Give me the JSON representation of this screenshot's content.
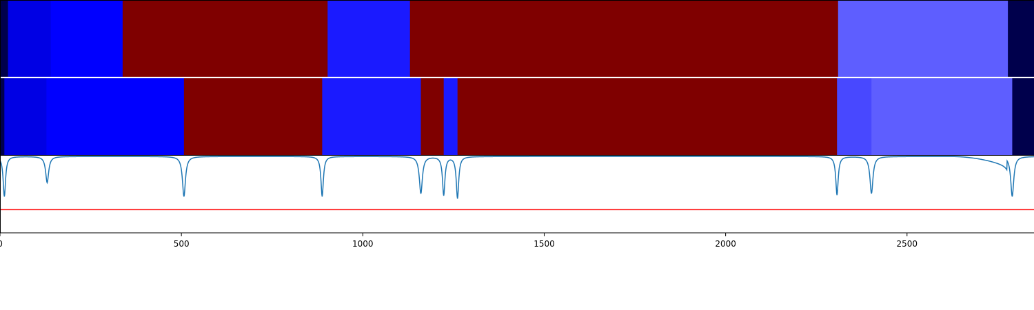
{
  "chart_data": {
    "type": "heatmap",
    "title": "",
    "xlabel": "",
    "ylabel": "",
    "xlim": [
      0,
      2850
    ],
    "x_ticks": [
      "0",
      "500",
      "1000",
      "1500",
      "2000",
      "2500"
    ],
    "x_tick_values": [
      0,
      500,
      1000,
      1500,
      2000,
      2500
    ],
    "colors": {
      "dark_navy": "#00004c",
      "blue_dark": "#0000e4",
      "blue": "#0000ff",
      "blue_mid": "#1a1aff",
      "blue_light": "#4848ff",
      "blue_pale": "#5e5eff",
      "maroon": "#7f0000",
      "curve": "#1f77b4",
      "threshold": "#ff0000"
    },
    "rows": [
      {
        "segments": [
          {
            "start": 0,
            "end": 22,
            "color": "dark_navy"
          },
          {
            "start": 22,
            "end": 140,
            "color": "blue_dark"
          },
          {
            "start": 140,
            "end": 338,
            "color": "blue"
          },
          {
            "start": 338,
            "end": 903,
            "color": "maroon"
          },
          {
            "start": 903,
            "end": 1130,
            "color": "blue_mid"
          },
          {
            "start": 1130,
            "end": 2310,
            "color": "maroon"
          },
          {
            "start": 2310,
            "end": 2778,
            "color": "blue_pale"
          },
          {
            "start": 2778,
            "end": 2850,
            "color": "dark_navy"
          }
        ]
      },
      {
        "segments": [
          {
            "start": 0,
            "end": 12,
            "color": "dark_navy"
          },
          {
            "start": 12,
            "end": 128,
            "color": "blue_dark"
          },
          {
            "start": 128,
            "end": 507,
            "color": "blue"
          },
          {
            "start": 507,
            "end": 888,
            "color": "maroon"
          },
          {
            "start": 888,
            "end": 1160,
            "color": "blue_mid"
          },
          {
            "start": 1160,
            "end": 1223,
            "color": "maroon"
          },
          {
            "start": 1223,
            "end": 1261,
            "color": "blue_mid"
          },
          {
            "start": 1261,
            "end": 2307,
            "color": "maroon"
          },
          {
            "start": 2307,
            "end": 2402,
            "color": "blue_light"
          },
          {
            "start": 2402,
            "end": 2790,
            "color": "blue_pale"
          },
          {
            "start": 2790,
            "end": 2850,
            "color": "dark_navy"
          }
        ]
      }
    ],
    "curve": {
      "ylim": [
        0,
        1
      ],
      "baseline": 0.99,
      "threshold": 0.3,
      "dips": [
        {
          "x": 12,
          "depth": 0.52,
          "width": 4
        },
        {
          "x": 130,
          "depth": 0.34,
          "width": 5
        },
        {
          "x": 507,
          "depth": 0.52,
          "width": 5
        },
        {
          "x": 888,
          "depth": 0.52,
          "width": 4
        },
        {
          "x": 1160,
          "depth": 0.48,
          "width": 5
        },
        {
          "x": 1223,
          "depth": 0.5,
          "width": 4
        },
        {
          "x": 1261,
          "depth": 0.54,
          "width": 4
        },
        {
          "x": 2307,
          "depth": 0.5,
          "width": 4
        },
        {
          "x": 2402,
          "depth": 0.48,
          "width": 5
        },
        {
          "x": 2790,
          "depth": 0.52,
          "width": 5
        }
      ],
      "gradual": {
        "start": 2620,
        "end": 2775,
        "depth": 0.12
      }
    }
  }
}
